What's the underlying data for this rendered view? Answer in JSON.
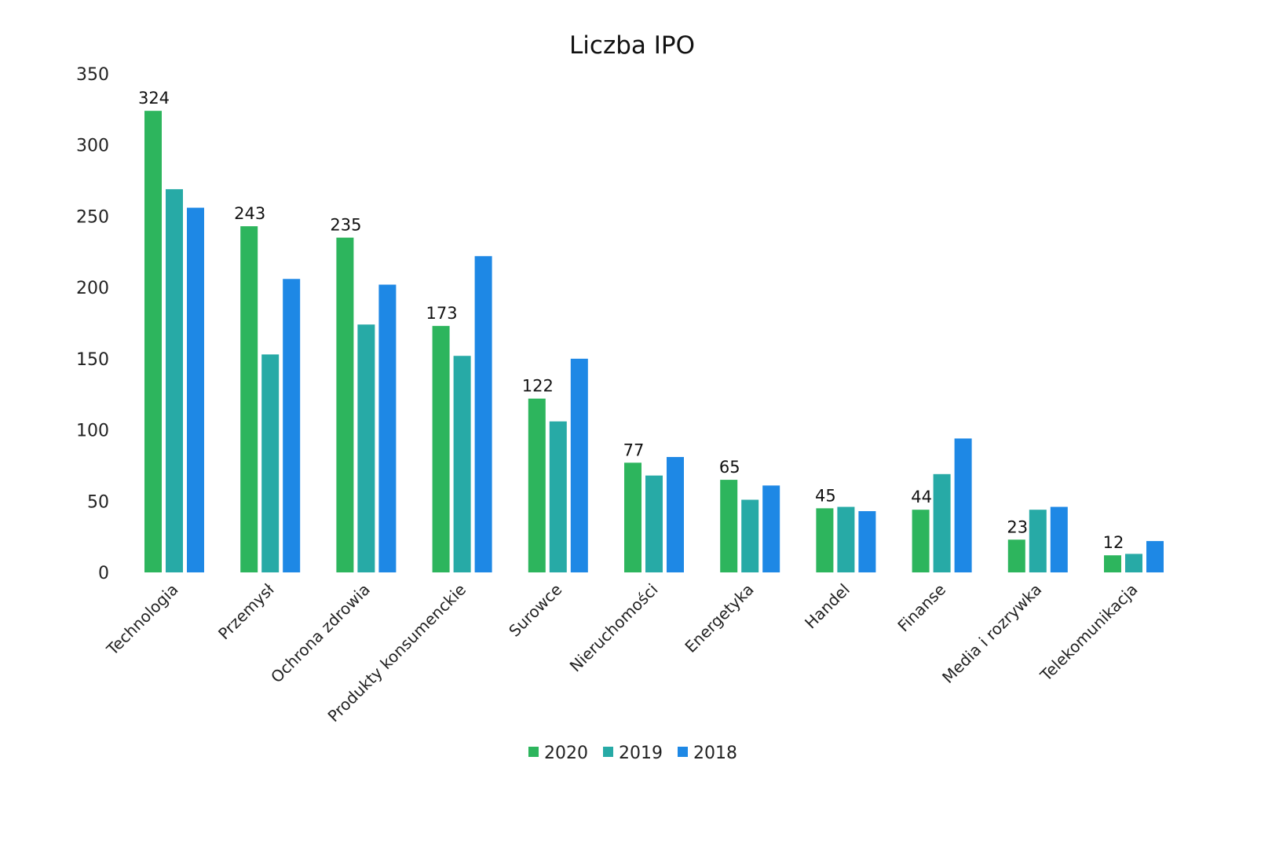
{
  "chart_data": {
    "type": "bar",
    "title": "Liczba IPO",
    "xlabel": "",
    "ylabel": "",
    "ylim": [
      0,
      350
    ],
    "yticks": [
      "0",
      "50",
      "100",
      "150",
      "200",
      "250",
      "300",
      "350"
    ],
    "grid": false,
    "legend_position": "bottom-center",
    "categories": [
      "Technologia",
      "Przemysł",
      "Ochrona zdrowia",
      "Produkty konsumenckie",
      "Surowce",
      "Nieruchomości",
      "Energetyka",
      "Handel",
      "Finanse",
      "Media i rozrywka",
      "Telekomunikacja"
    ],
    "series": [
      {
        "name": "2020",
        "color": "#2db55d",
        "values": [
          324,
          243,
          235,
          173,
          122,
          77,
          65,
          45,
          44,
          23,
          12
        ],
        "show_labels": true
      },
      {
        "name": "2019",
        "color": "#27aaa6",
        "values": [
          269,
          153,
          174,
          152,
          106,
          68,
          51,
          46,
          69,
          44,
          13
        ],
        "show_labels": false
      },
      {
        "name": "2018",
        "color": "#1e88e5",
        "values": [
          256,
          206,
          202,
          222,
          150,
          81,
          61,
          43,
          94,
          46,
          22
        ],
        "show_labels": false
      }
    ]
  }
}
